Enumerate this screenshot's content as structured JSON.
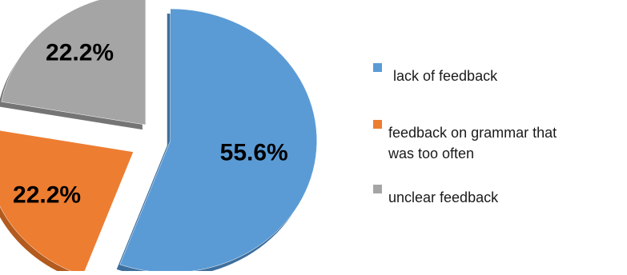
{
  "chart_data": {
    "type": "pie",
    "exploded": true,
    "style": "3d-tilted",
    "legend_position": "right",
    "slices": [
      {
        "label_lines": [
          "lack of feedback"
        ],
        "value": 55.6,
        "display": "55.6%",
        "color": "#5b9bd5",
        "shadow_color": "#3d6f9e"
      },
      {
        "label_lines": [
          "feedback on grammar that",
          "was too often"
        ],
        "value": 22.2,
        "display": "22.2%",
        "color": "#ed7d31",
        "shadow_color": "#b35a1e"
      },
      {
        "label_lines": [
          "unclear feedback"
        ],
        "value": 22.2,
        "display": "22.2%",
        "color": "#a5a5a5",
        "shadow_color": "#757575"
      }
    ]
  }
}
